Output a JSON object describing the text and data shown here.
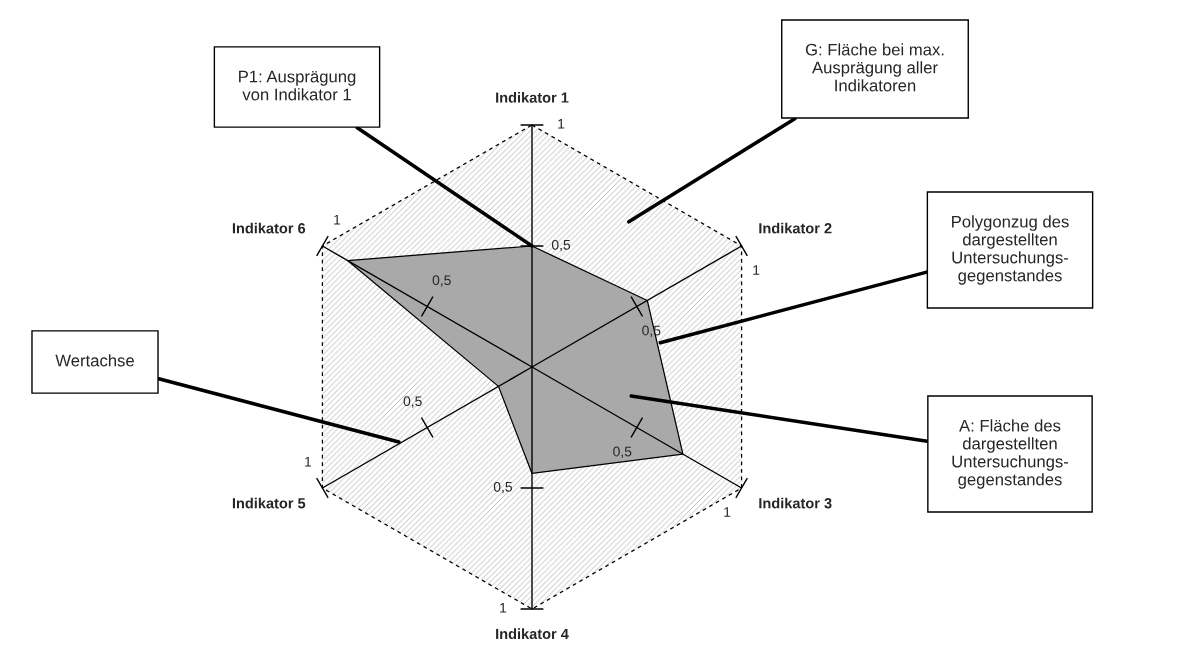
{
  "chart_data": {
    "type": "radar",
    "categories": [
      "Indikator 1",
      "Indikator 2",
      "Indikator 3",
      "Indikator 4",
      "Indikator 5",
      "Indikator 6"
    ],
    "series": [
      {
        "color": "#a9a9a9",
        "values": [
          0.5,
          0.55,
          0.72,
          0.44,
          0.16,
          0.88
        ]
      }
    ],
    "ylim": [
      0,
      1
    ],
    "yticks": [
      {
        "value": 0.5,
        "label": "0,5"
      },
      {
        "value": 1,
        "label": "1"
      }
    ],
    "annotations": [
      "P1: Ausprägung\nvon Indikator 1",
      "G: Fläche bei max.\nAusprägung aller\nIndikatoren",
      "Polygonzug des\ndargestellten\nUntersuchungs-\ngegenstandes",
      "Wertachse",
      "A: Fläche des\ndargestellten\nUntersuchungs-\ngegenstandes"
    ]
  }
}
